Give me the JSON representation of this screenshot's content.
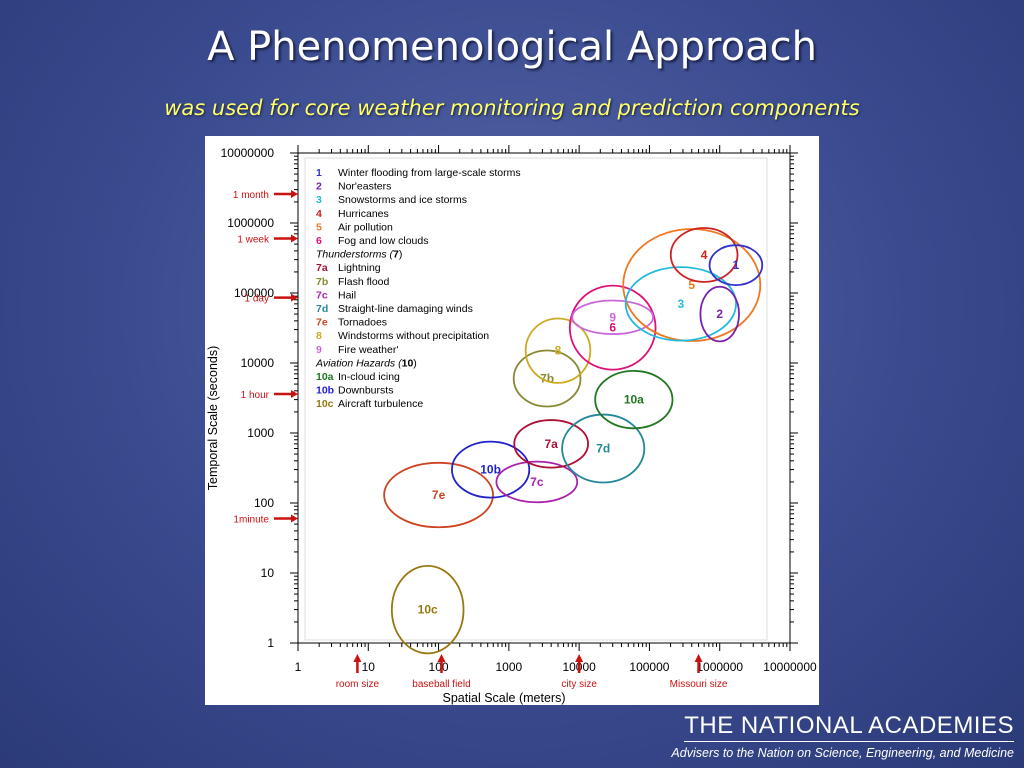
{
  "slide": {
    "title": "A Phenomenological Approach",
    "subtitle": "was used for core weather monitoring and prediction components"
  },
  "footer": {
    "org": "THE NATIONAL ACADEMIES",
    "tagline": "Advisers to the Nation on Science, Engineering, and Medicine"
  },
  "chart_data": {
    "type": "scatter",
    "xlabel": "Spatial Scale (meters)",
    "ylabel": "Temporal Scale (seconds)",
    "xscale": "log",
    "yscale": "log",
    "xlim": [
      1,
      10000000
    ],
    "ylim": [
      1,
      10000000
    ],
    "x_ticks": [
      "1",
      "10",
      "100",
      "1000",
      "10000",
      "100000",
      "1000000",
      "10000000"
    ],
    "y_ticks": [
      "1",
      "10",
      "100",
      "1000",
      "10000",
      "100000",
      "1000000",
      "10000000"
    ],
    "y_markers": [
      {
        "label": "1 month",
        "value": 2600000
      },
      {
        "label": "1 week",
        "value": 600000
      },
      {
        "label": "1 day",
        "value": 86000
      },
      {
        "label": "1 hour",
        "value": 3600
      },
      {
        "label": "1minute",
        "value": 60
      }
    ],
    "x_markers": [
      {
        "label": "room size",
        "value": 7
      },
      {
        "label": "baseball field",
        "value": 110
      },
      {
        "label": "city size",
        "value": 10000
      },
      {
        "label": "Missouri size",
        "value": 500000
      }
    ],
    "legend": [
      {
        "id": "1",
        "text": "Winter flooding from large-scale storms",
        "color": "#3333cc"
      },
      {
        "id": "2",
        "text": "Nor'easters",
        "color": "#7722aa"
      },
      {
        "id": "3",
        "text": "Snowstorms and ice storms",
        "color": "#22bbdd"
      },
      {
        "id": "4",
        "text": "Hurricanes",
        "color": "#cc2222"
      },
      {
        "id": "5",
        "text": "Air pollution",
        "color": "#ee7722"
      },
      {
        "id": "6",
        "text": "Fog and low clouds",
        "color": "#dd1177"
      },
      {
        "heading": "Thunderstorms",
        "hid": "7"
      },
      {
        "id": "7a",
        "text": "Lightning",
        "color": "#aa1133"
      },
      {
        "id": "7b",
        "text": "Flash flood",
        "color": "#888833"
      },
      {
        "id": "7c",
        "text": "Hail",
        "color": "#aa22aa"
      },
      {
        "id": "7d",
        "text": "Straight-line damaging winds",
        "color": "#228899"
      },
      {
        "id": "7e",
        "text": "Tornadoes",
        "color": "#cc4422"
      },
      {
        "id": "8",
        "text": "Windstorms without precipitation",
        "color": "#ccaa22"
      },
      {
        "id": "9",
        "text": "Fire weather'",
        "color": "#cc66dd"
      },
      {
        "heading": "Aviation Hazards",
        "hid": "10"
      },
      {
        "id": "10a",
        "text": "In-cloud icing",
        "color": "#227722"
      },
      {
        "id": "10b",
        "text": "Downbursts",
        "color": "#2222cc"
      },
      {
        "id": "10c",
        "text": "Aircraft turbulence",
        "color": "#997711"
      }
    ],
    "phenomena": [
      {
        "id": "10c",
        "color": "#997711",
        "x": 70,
        "y": 3,
        "x_decades": 1.02,
        "y_decades": 1.25
      },
      {
        "id": "7e",
        "color": "#cc4422",
        "x": 100,
        "y": 130,
        "x_decades": 1.55,
        "y_decades": 0.92
      },
      {
        "id": "10b",
        "color": "#2222cc",
        "x": 550,
        "y": 300,
        "x_decades": 1.1,
        "y_decades": 0.8
      },
      {
        "id": "7c",
        "color": "#aa22aa",
        "x": 2500,
        "y": 200,
        "x_decades": 1.15,
        "y_decades": 0.58
      },
      {
        "id": "7a",
        "color": "#aa1133",
        "x": 4000,
        "y": 700,
        "x_decades": 1.05,
        "y_decades": 0.68
      },
      {
        "id": "7d",
        "color": "#228899",
        "x": 22000,
        "y": 600,
        "x_decades": 1.17,
        "y_decades": 0.97
      },
      {
        "id": "10a",
        "color": "#227722",
        "x": 60000,
        "y": 3000,
        "x_decades": 1.1,
        "y_decades": 0.82
      },
      {
        "id": "7b",
        "color": "#888833",
        "x": 3500,
        "y": 6000,
        "x_decades": 0.95,
        "y_decades": 0.8
      },
      {
        "id": "8",
        "color": "#ccaa22",
        "x": 5000,
        "y": 15000,
        "x_decades": 0.92,
        "y_decades": 0.92
      },
      {
        "id": "6",
        "color": "#dd1177",
        "x": 30000,
        "y": 32000,
        "x_decades": 1.22,
        "y_decades": 1.2
      },
      {
        "id": "9",
        "color": "#cc66dd",
        "x": 30000,
        "y": 45000,
        "x_decades": 1.15,
        "y_decades": 0.48
      },
      {
        "id": "5",
        "color": "#ee7722",
        "x": 400000,
        "y": 130000,
        "x_decades": 1.95,
        "y_decades": 1.6
      },
      {
        "id": "3",
        "color": "#22bbdd",
        "x": 280000,
        "y": 70000,
        "x_decades": 1.57,
        "y_decades": 1.05
      },
      {
        "id": "4",
        "color": "#cc2222",
        "x": 600000,
        "y": 350000,
        "x_decades": 0.95,
        "y_decades": 0.77
      },
      {
        "id": "1",
        "color": "#3333cc",
        "x": 1700000,
        "y": 250000,
        "x_decades": 0.75,
        "y_decades": 0.57
      },
      {
        "id": "2",
        "color": "#7722aa",
        "x": 1000000,
        "y": 50000,
        "x_decades": 0.55,
        "y_decades": 0.78
      }
    ]
  }
}
